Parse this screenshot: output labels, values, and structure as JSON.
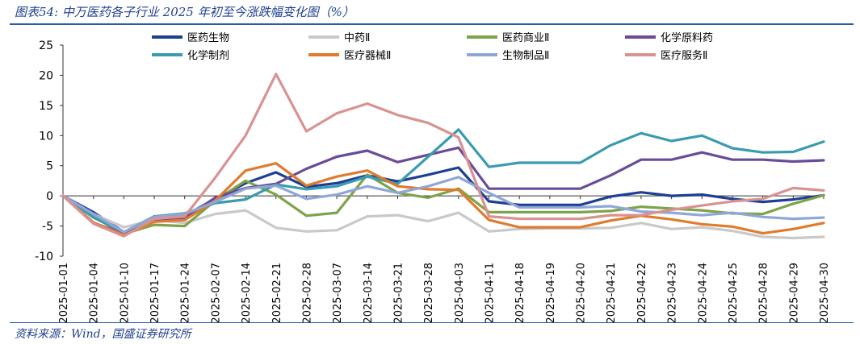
{
  "header": {
    "title": "图表54:  中万医药各子行业 2025 年初至今涨跌幅变化图（%）"
  },
  "footer": {
    "source": "资料来源：Wind，国盛证券研究所"
  },
  "chart_data": {
    "type": "line",
    "title": "图表54:  中万医药各子行业 2025 年初至今涨跌幅变化图（%）",
    "ylim": [
      -10,
      25
    ],
    "yticks": [
      -10,
      -5,
      0,
      5,
      10,
      15,
      20,
      25
    ],
    "grid": false,
    "legend_position": "top",
    "categories": [
      "2025-01-01",
      "2025-01-04",
      "2025-01-10",
      "2025-01-17",
      "2025-01-24",
      "2025-02-07",
      "2025-02-14",
      "2025-02-21",
      "2025-02-28",
      "2025-03-07",
      "2025-03-14",
      "2025-03-21",
      "2025-03-28",
      "2025-04-03",
      "2025-04-11",
      "2025-04-18",
      "2025-04-19",
      "2025-04-20",
      "2025-04-21",
      "2025-04-22",
      "2025-04-23",
      "2025-04-24",
      "2025-04-25",
      "2025-04-28",
      "2025-04-29",
      "2025-04-30"
    ],
    "series": [
      {
        "name": "医药生物",
        "color": "#1c3f94",
        "values": [
          0,
          -2.7,
          -6,
          -3.8,
          -3.3,
          -0.5,
          2.1,
          3.9,
          1.5,
          2.1,
          3.4,
          2.4,
          3.5,
          4.7,
          -0.9,
          -1.5,
          -1.5,
          -1.5,
          -0.1,
          0.6,
          0,
          0.2,
          -0.5,
          -1,
          -0.6,
          0.1
        ]
      },
      {
        "name": "中药Ⅱ",
        "color": "#c9c9c9",
        "values": [
          0,
          -3,
          -5.2,
          -4,
          -4.5,
          -3,
          -2.4,
          -5.3,
          -5.9,
          -5.7,
          -3.4,
          -3.2,
          -4.2,
          -2.8,
          -5.9,
          -5.5,
          -5.4,
          -5.4,
          -5.3,
          -4.5,
          -5.5,
          -5.2,
          -5.8,
          -6.8,
          -7,
          -6.8
        ]
      },
      {
        "name": "医药商业Ⅱ",
        "color": "#7ea34a",
        "values": [
          0,
          -3.5,
          -6.3,
          -4.8,
          -5,
          -0.8,
          2.5,
          0.2,
          -3.3,
          -2.8,
          3.5,
          0.5,
          -0.3,
          1.2,
          -2.7,
          -2.7,
          -2.7,
          -2.7,
          -2.5,
          -1.8,
          -2.1,
          -2.4,
          -2.9,
          -3,
          -1.3,
          0.1
        ]
      },
      {
        "name": "化学原料药",
        "color": "#6a4b98",
        "values": [
          0,
          -4.5,
          -6.2,
          -4,
          -3.7,
          -0.3,
          1.3,
          2,
          4.5,
          6.5,
          7.5,
          5.6,
          6.8,
          8,
          1.2,
          1.2,
          1.2,
          1.2,
          3.4,
          6,
          6,
          7.2,
          6,
          6,
          5.7,
          5.9
        ]
      },
      {
        "name": "化学制剂",
        "color": "#3a9bb0",
        "values": [
          0,
          -3.6,
          -6,
          -3.4,
          -2.9,
          -1.2,
          -0.6,
          1.9,
          1.1,
          1.6,
          3.2,
          2,
          6.5,
          11,
          4.8,
          5.5,
          5.5,
          5.5,
          8.4,
          10.4,
          9.1,
          10,
          7.9,
          7.2,
          7.3,
          9
        ]
      },
      {
        "name": "医疗器械Ⅱ",
        "color": "#e07b2e",
        "values": [
          0,
          -4.4,
          -6.5,
          -4.3,
          -4,
          -0.8,
          4.2,
          5.4,
          1.7,
          3.2,
          4.2,
          1.6,
          1.1,
          1,
          -4,
          -5.2,
          -5.2,
          -5.2,
          -4.1,
          -3.3,
          -3.9,
          -4.7,
          -5.1,
          -6.2,
          -5.5,
          -4.5
        ]
      },
      {
        "name": "生物制品Ⅱ",
        "color": "#8fa7d8",
        "values": [
          0,
          -3,
          -6,
          -3.5,
          -3,
          -1,
          1.2,
          1.7,
          -0.5,
          0.2,
          1.6,
          0.5,
          1.6,
          3.1,
          0.5,
          -1.9,
          -1.9,
          -1.9,
          -1.7,
          -2.6,
          -2.8,
          -3.2,
          -2.8,
          -3.5,
          -3.8,
          -3.6
        ]
      },
      {
        "name": "医疗服务Ⅱ",
        "color": "#d99292",
        "values": [
          0,
          -4.6,
          -6.7,
          -3.8,
          -3.4,
          3,
          10,
          20.2,
          10.7,
          13.7,
          15.3,
          13.4,
          12.1,
          9.7,
          -3.4,
          -3.8,
          -3.8,
          -3.8,
          -3.2,
          -3.2,
          -2.3,
          -1.6,
          -0.9,
          -0.5,
          1.3,
          0.9
        ]
      }
    ]
  }
}
